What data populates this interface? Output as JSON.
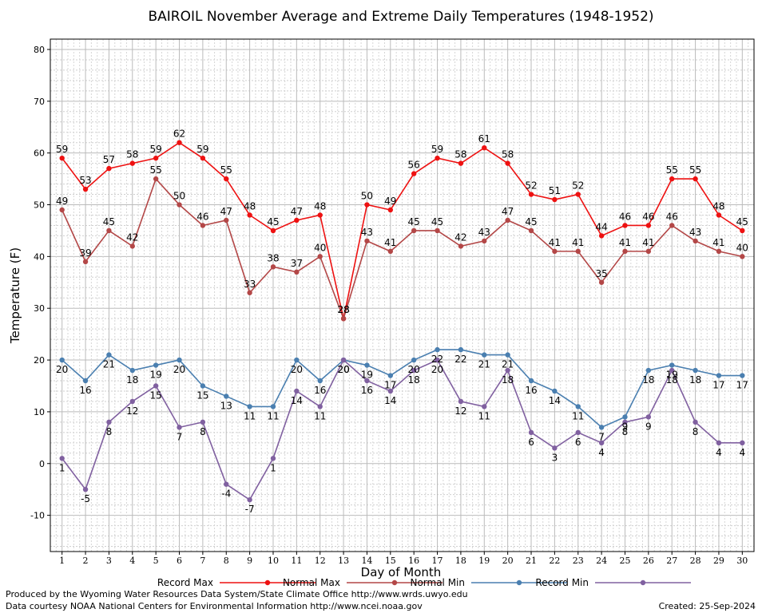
{
  "chart_data": {
    "type": "line",
    "title": "BAIROIL November Average and Extreme Daily Temperatures (1948-1952)",
    "xlabel": "Day of Month",
    "ylabel": "Temperature (F)",
    "x": [
      1,
      2,
      3,
      4,
      5,
      6,
      7,
      8,
      9,
      10,
      11,
      12,
      13,
      14,
      15,
      16,
      17,
      18,
      19,
      20,
      21,
      22,
      23,
      24,
      25,
      26,
      27,
      28,
      29,
      30
    ],
    "xlim": [
      0.5,
      30.5
    ],
    "ylim": [
      -17,
      82
    ],
    "yticks": [
      -10,
      0,
      10,
      20,
      30,
      40,
      50,
      60,
      70,
      80
    ],
    "grid": true,
    "legend_position": "bottom",
    "series": [
      {
        "name": "Record Max",
        "color": "#ee1111",
        "label_pos": "above",
        "values": [
          59,
          53,
          57,
          58,
          59,
          62,
          59,
          55,
          48,
          45,
          47,
          48,
          28,
          50,
          49,
          56,
          59,
          58,
          61,
          58,
          52,
          51,
          52,
          44,
          46,
          46,
          55,
          55,
          48,
          45
        ]
      },
      {
        "name": "Normal Max",
        "color": "#b34747",
        "label_pos": "above",
        "values": [
          49,
          39,
          45,
          42,
          55,
          50,
          46,
          47,
          33,
          38,
          37,
          40,
          28,
          43,
          41,
          45,
          45,
          42,
          43,
          47,
          45,
          41,
          41,
          35,
          41,
          41,
          46,
          43,
          41,
          40
        ]
      },
      {
        "name": "Normal Min",
        "color": "#4a7fb0",
        "label_pos": "below",
        "values": [
          20,
          16,
          21,
          18,
          19,
          20,
          15,
          13,
          11,
          11,
          20,
          16,
          20,
          19,
          17,
          20,
          22,
          22,
          21,
          21,
          16,
          14,
          11,
          7,
          9,
          18,
          19,
          18,
          17,
          17
        ]
      },
      {
        "name": "Record Min",
        "color": "#8060a0",
        "label_pos": "below",
        "values": [
          1,
          -5,
          8,
          12,
          15,
          7,
          8,
          -4,
          -7,
          1,
          14,
          11,
          20,
          16,
          14,
          18,
          20,
          12,
          11,
          18,
          6,
          3,
          6,
          4,
          8,
          9,
          18,
          8,
          4,
          4
        ]
      }
    ]
  },
  "footer": {
    "line1": "Produced by the Wyoming Water Resources Data System/State Climate Office http://www.wrds.uwyo.edu",
    "line2": "Data courtesy NOAA National Centers for Environmental Information http://www.ncei.noaa.gov",
    "created": "Created: 25-Sep-2024"
  }
}
